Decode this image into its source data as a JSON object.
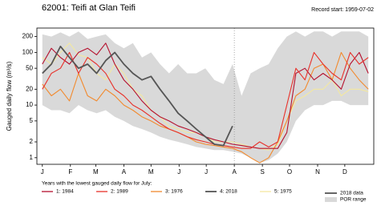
{
  "chart_data": {
    "type": "line",
    "title": "62001: Teifi at Glan Teifi",
    "subtitle": "Record start: 1959-07-02",
    "y_label": "Gauged daily flow (m³/s)",
    "legend_title": "Years with the lowest gauged daily flow for July:",
    "highlight_label": "2018 data",
    "log_y": true,
    "xlim": [
      -6,
      366
    ],
    "ylim": [
      0.75,
      290
    ],
    "yticks": [
      1,
      2,
      5,
      10,
      20,
      50,
      100,
      200
    ],
    "xticks": [
      {
        "value": 0,
        "label": "J"
      },
      {
        "value": 31,
        "label": "F"
      },
      {
        "value": 59,
        "label": "M"
      },
      {
        "value": 90,
        "label": "A"
      },
      {
        "value": 120,
        "label": "M"
      },
      {
        "value": 151,
        "label": "J"
      },
      {
        "value": 181,
        "label": "J"
      },
      {
        "value": 212,
        "label": "A"
      },
      {
        "value": 243,
        "label": "S"
      },
      {
        "value": 273,
        "label": "O"
      },
      {
        "value": 304,
        "label": "N"
      },
      {
        "value": 334,
        "label": "D"
      }
    ],
    "vline": 212,
    "x": [
      0,
      10,
      20,
      30,
      40,
      50,
      60,
      70,
      80,
      90,
      100,
      110,
      120,
      130,
      140,
      150,
      160,
      170,
      180,
      190,
      200,
      210,
      220,
      230,
      240,
      250,
      260,
      270,
      280,
      290,
      300,
      310,
      320,
      330,
      340,
      350,
      360
    ],
    "band": {
      "name": "POR range",
      "color": "#d9d9d9",
      "min": [
        10,
        8,
        8,
        7,
        10,
        8,
        7,
        8,
        6,
        5,
        4,
        3.5,
        3,
        2.5,
        2.2,
        2,
        1.8,
        1.6,
        1.5,
        1.4,
        1.4,
        1.3,
        1.2,
        1.0,
        0.8,
        0.9,
        1.2,
        2,
        5,
        8,
        10,
        10,
        12,
        12,
        10,
        10,
        10
      ],
      "max": [
        220,
        200,
        240,
        200,
        250,
        180,
        200,
        220,
        150,
        120,
        150,
        80,
        100,
        60,
        40,
        60,
        40,
        40,
        50,
        30,
        25,
        60,
        15,
        40,
        50,
        60,
        120,
        200,
        250,
        200,
        250,
        250,
        200,
        250,
        250,
        250,
        200
      ]
    },
    "series": [
      {
        "name": "1: 1984",
        "color": "#b5102e",
        "values": [
          60,
          120,
          80,
          60,
          100,
          120,
          90,
          150,
          60,
          30,
          20,
          12,
          8,
          6,
          5,
          4,
          3.5,
          3,
          2.5,
          2.2,
          2,
          1.8,
          1.7,
          1.6,
          1.5,
          1.5,
          1.5,
          3,
          40,
          50,
          30,
          40,
          30,
          20,
          60,
          100,
          40
        ]
      },
      {
        "name": "2: 1989",
        "color": "#e8312a",
        "values": [
          20,
          40,
          50,
          100,
          40,
          80,
          60,
          40,
          20,
          15,
          10,
          8,
          6,
          4.5,
          3.5,
          3,
          2.5,
          2.2,
          2,
          1.8,
          1.7,
          1.6,
          1.5,
          1.5,
          2,
          1.6,
          2,
          10,
          50,
          30,
          100,
          60,
          40,
          30,
          100,
          60,
          80
        ]
      },
      {
        "name": "3: 1976",
        "color": "#f28a2e",
        "values": [
          25,
          15,
          20,
          12,
          40,
          15,
          12,
          20,
          15,
          10,
          8,
          6,
          5,
          4,
          3.5,
          3,
          2.5,
          2,
          1.8,
          1.7,
          1.6,
          1.5,
          1.3,
          1.0,
          0.8,
          1,
          2,
          5,
          15,
          20,
          50,
          60,
          30,
          100,
          50,
          30,
          20
        ]
      },
      {
        "name": "4: 2018",
        "color": "#555555",
        "values": [
          40,
          60,
          130,
          80,
          50,
          60,
          40,
          70,
          100,
          60,
          40,
          30,
          35,
          20,
          12,
          7,
          5,
          3.5,
          2.5,
          1.8,
          1.7,
          4,
          null,
          null,
          null,
          null,
          null,
          null,
          null,
          null,
          null,
          null,
          null,
          null,
          null,
          null,
          null
        ]
      },
      {
        "name": "5: 1975",
        "color": "#f3e8a0",
        "values": [
          80,
          60,
          100,
          150,
          90,
          80,
          40,
          30,
          60,
          40,
          20,
          15,
          8,
          6,
          4,
          3.5,
          3,
          3,
          2.5,
          2,
          2,
          2,
          1.8,
          1.6,
          1.5,
          1.4,
          1.8,
          5,
          12,
          15,
          20,
          20,
          30,
          15,
          20,
          20,
          18
        ]
      }
    ]
  }
}
